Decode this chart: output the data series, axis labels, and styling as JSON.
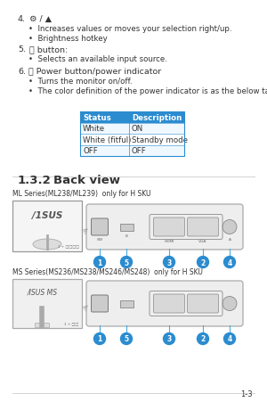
{
  "bg_color": "#ffffff",
  "page_num": "1-3",
  "text_color": "#333333",
  "blue_header": "#2b8ccf",
  "circle_color": "#2b8ccf",
  "item4_bullets": [
    "Increases values or moves your selection right/up.",
    "Brightness hotkey"
  ],
  "item5_bullets": [
    "Selects an available input source."
  ],
  "item6_bullets": [
    "Turns the monitor on/off.",
    "The color definition of the power indicator is as the below table."
  ],
  "table_headers": [
    "Status",
    "Description"
  ],
  "table_rows": [
    [
      "White",
      "ON"
    ],
    [
      "White (fitful)",
      "Standby mode"
    ],
    [
      "OFF",
      "OFF"
    ]
  ],
  "section_num": "1.3.2",
  "section_name": "Back view",
  "ml_label": "ML Series(ML238/ML239)  only for H SKU",
  "ms_label": "MS Series(MS236/MS238/MS246/MS248)  only for H SKU",
  "callout_numbers": [
    "1",
    "5",
    "3",
    "2",
    "4"
  ]
}
